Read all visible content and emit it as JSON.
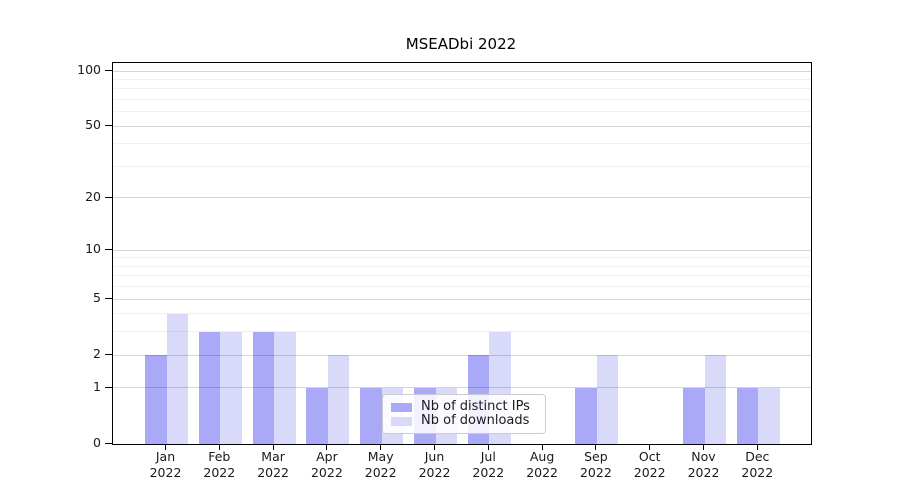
{
  "chart_data": {
    "type": "bar",
    "title": "MSEADbi 2022",
    "categories": [
      {
        "month": "Jan",
        "year": "2022"
      },
      {
        "month": "Feb",
        "year": "2022"
      },
      {
        "month": "Mar",
        "year": "2022"
      },
      {
        "month": "Apr",
        "year": "2022"
      },
      {
        "month": "May",
        "year": "2022"
      },
      {
        "month": "Jun",
        "year": "2022"
      },
      {
        "month": "Jul",
        "year": "2022"
      },
      {
        "month": "Aug",
        "year": "2022"
      },
      {
        "month": "Sep",
        "year": "2022"
      },
      {
        "month": "Oct",
        "year": "2022"
      },
      {
        "month": "Nov",
        "year": "2022"
      },
      {
        "month": "Dec",
        "year": "2022"
      }
    ],
    "series": [
      {
        "name": "Nb of distinct IPs",
        "color": "#a9a9f8",
        "values": [
          2,
          3,
          3,
          1,
          1,
          1,
          2,
          0,
          1,
          0,
          1,
          1
        ]
      },
      {
        "name": "Nb of downloads",
        "color": "#d9d9fa",
        "values": [
          4,
          3,
          3,
          2,
          1,
          1,
          3,
          0,
          2,
          0,
          2,
          1
        ]
      }
    ],
    "y_axis": {
      "scale": "log1p",
      "tick_values": [
        0,
        1,
        2,
        5,
        10,
        20,
        50,
        100
      ],
      "tick_labels": [
        "0",
        "1",
        "2",
        "5",
        "10",
        "20",
        "50",
        "100"
      ],
      "minor_gridlines": [
        3,
        4,
        6,
        7,
        8,
        9,
        30,
        40,
        60,
        70,
        80,
        90
      ],
      "range": [
        0,
        100
      ]
    },
    "legend": {
      "location": "lower center",
      "entries": [
        "Nb of distinct IPs",
        "Nb of downloads"
      ]
    },
    "grid": true,
    "colors": {
      "bar_distinct_ips": "#a9a9f8",
      "bar_downloads": "#d9d9fa",
      "major_grid": "#d6d6d6",
      "minor_grid": "#f1f1f1",
      "axis": "#000000",
      "legend_border": "#cccccc"
    }
  }
}
